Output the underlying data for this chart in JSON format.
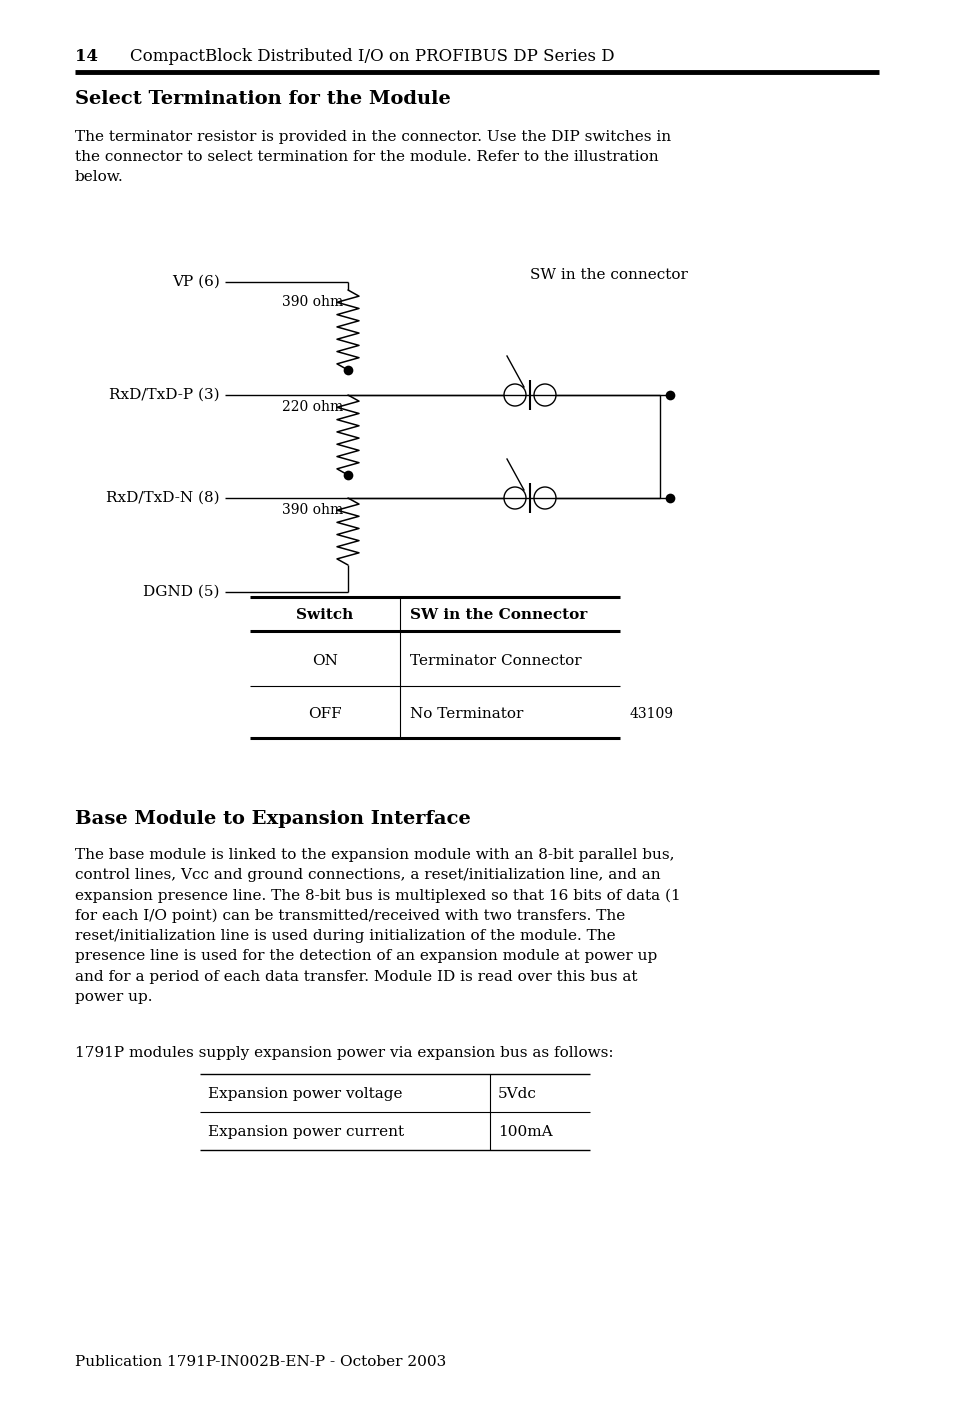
{
  "page_header_num": "14",
  "page_header_text": "CompactBlock Distributed I/O on PROFIBUS DP Series D",
  "section1_title": "Select Termination for the Module",
  "section1_body": "The terminator resistor is provided in the connector. Use the DIP switches in\nthe connector to select termination for the module. Refer to the illustration\nbelow.",
  "circuit_labels": {
    "VP6": "VP (6)",
    "RxDP3": "RxD/TxD-P (3)",
    "RxDN8": "RxD/TxD-N (8)",
    "DGND5": "DGND (5)",
    "r390_top": "390 ohm",
    "r220": "220 ohm",
    "r390_bot": "390 ohm",
    "sw_label": "SW in the connector"
  },
  "table_headers": [
    "Switch",
    "SW in the Connector"
  ],
  "table_rows": [
    [
      "ON",
      "Terminator Connector"
    ],
    [
      "OFF",
      "No Terminator"
    ]
  ],
  "table_note": "43109",
  "section2_title": "Base Module to Expansion Interface",
  "section2_body": "The base module is linked to the expansion module with an 8-bit parallel bus,\ncontrol lines, Vcc and ground connections, a reset/initialization line, and an\nexpansion presence line. The 8-bit bus is multiplexed so that 16 bits of data (1\nfor each I/O point) can be transmitted/received with two transfers. The\nreset/initialization line is used during initialization of the module. The\npresence line is used for the detection of an expansion module at power up\nand for a period of each data transfer. Module ID is read over this bus at\npower up.",
  "section2_extra": "1791P modules supply expansion power via expansion bus as follows:",
  "exp_row1": [
    "Expansion power voltage",
    "5Vdc"
  ],
  "exp_row2": [
    "Expansion power current",
    "100mA"
  ],
  "footer": "Publication 1791P-IN002B-EN-P - October 2003",
  "bg_color": "#ffffff"
}
